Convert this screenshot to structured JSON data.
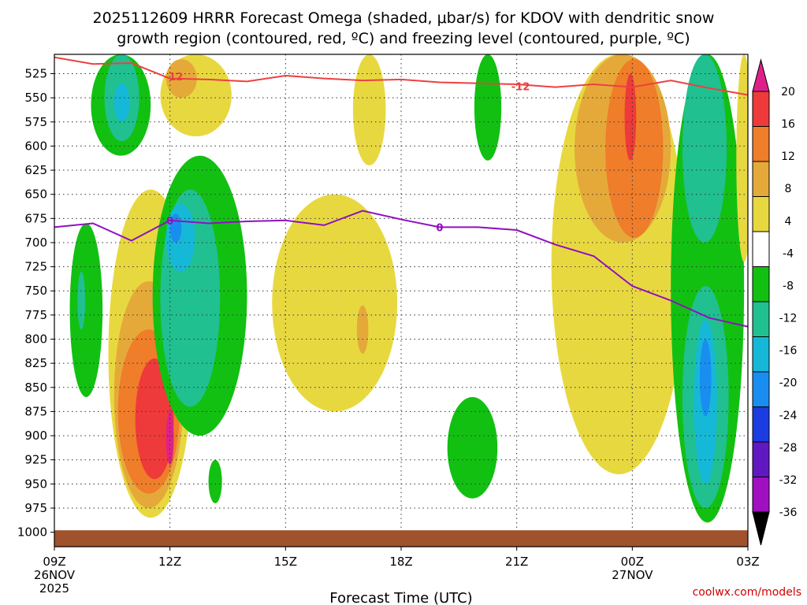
{
  "chart_data": {
    "type": "heatmap",
    "title_line1": "2025112609 HRRR Forecast Omega (shaded, μbar/s) for KDOV with dendritic snow",
    "title_line2": "growth region (contoured, red, ºC) and freezing level (contoured, purple, ºC)",
    "xlabel": "Forecast Time (UTC)",
    "x_range_hours": [
      0,
      18
    ],
    "x_ticks": [
      {
        "hour": 0,
        "label": "09Z",
        "sub1": "26NOV",
        "sub2": "2025"
      },
      {
        "hour": 3,
        "label": "12Z",
        "sub1": "",
        "sub2": ""
      },
      {
        "hour": 6,
        "label": "15Z",
        "sub1": "",
        "sub2": ""
      },
      {
        "hour": 9,
        "label": "18Z",
        "sub1": "",
        "sub2": ""
      },
      {
        "hour": 12,
        "label": "21Z",
        "sub1": "",
        "sub2": ""
      },
      {
        "hour": 15,
        "label": "00Z",
        "sub1": "27NOV",
        "sub2": ""
      },
      {
        "hour": 18,
        "label": "03Z",
        "sub1": "",
        "sub2": ""
      }
    ],
    "y_range_hPa": [
      1015,
      505
    ],
    "y_ticks": [
      "525",
      "550",
      "575",
      "600",
      "625",
      "650",
      "675",
      "700",
      "725",
      "750",
      "775",
      "800",
      "825",
      "850",
      "875",
      "900",
      "925",
      "950",
      "975",
      "1000"
    ],
    "colorbar": {
      "labels": [
        "20",
        "16",
        "12",
        "8",
        "4",
        "-4",
        "-8",
        "-12",
        "-16",
        "-20",
        "-24",
        "-28",
        "-32",
        "-36"
      ],
      "colors": [
        "#e0208a",
        "#ee3a3a",
        "#ef7d2a",
        "#e5a93a",
        "#e8d840",
        "#ffffff",
        "#12c012",
        "#20c090",
        "#16b8d8",
        "#1a8ef0",
        "#1a3ce0",
        "#6018c0",
        "#a010c0",
        "#9a9a9a"
      ]
    },
    "shading": [
      {
        "name": "green-top-left",
        "color": "#12c012",
        "x": [
          0.95,
          2.5
        ],
        "p": [
          505,
          610
        ]
      },
      {
        "name": "teal-top-left",
        "color": "#20c090",
        "x": [
          1.3,
          2.2
        ],
        "p": [
          505,
          595
        ]
      },
      {
        "name": "cyan-top-left",
        "color": "#16b8d8",
        "x": [
          1.55,
          1.95
        ],
        "p": [
          535,
          575
        ]
      },
      {
        "name": "green-left-low",
        "color": "#12c012",
        "x": [
          0.4,
          1.25
        ],
        "p": [
          680,
          860
        ]
      },
      {
        "name": "teal-left-low",
        "color": "#20c090",
        "x": [
          0.6,
          0.8
        ],
        "p": [
          730,
          790
        ]
      },
      {
        "name": "yellow-upper-12z",
        "color": "#e8d840",
        "x": [
          2.75,
          4.6
        ],
        "p": [
          505,
          590
        ]
      },
      {
        "name": "tan-upper-12z",
        "color": "#e5a93a",
        "x": [
          2.9,
          3.7
        ],
        "p": [
          510,
          550
        ]
      },
      {
        "name": "yellow-left-main",
        "color": "#e8d840",
        "x": [
          1.4,
          3.6
        ],
        "p": [
          645,
          985
        ]
      },
      {
        "name": "tan-left-main",
        "color": "#e5a93a",
        "x": [
          1.55,
          3.35
        ],
        "p": [
          740,
          975
        ]
      },
      {
        "name": "orange-left-main",
        "color": "#ef7d2a",
        "x": [
          1.65,
          3.25
        ],
        "p": [
          790,
          960
        ]
      },
      {
        "name": "red-left-main",
        "color": "#ee3a3a",
        "x": [
          2.1,
          3.1
        ],
        "p": [
          820,
          945
        ]
      },
      {
        "name": "magenta-left-main",
        "color": "#e0208a",
        "x": [
          2.9,
          3.1
        ],
        "p": [
          875,
          930
        ]
      },
      {
        "name": "green-12z",
        "color": "#12c012",
        "x": [
          2.55,
          5.0
        ],
        "p": [
          610,
          900
        ]
      },
      {
        "name": "teal-12z",
        "color": "#20c090",
        "x": [
          2.75,
          4.3
        ],
        "p": [
          645,
          870
        ]
      },
      {
        "name": "cyan-12z",
        "color": "#16b8d8",
        "x": [
          2.9,
          3.65
        ],
        "p": [
          660,
          730
        ]
      },
      {
        "name": "blue-12z",
        "color": "#1a8ef0",
        "x": [
          3.0,
          3.3
        ],
        "p": [
          670,
          700
        ]
      },
      {
        "name": "green-small-13z",
        "color": "#12c012",
        "x": [
          4.0,
          4.35
        ],
        "p": [
          925,
          970
        ]
      },
      {
        "name": "yellow-mid",
        "color": "#e8d840",
        "x": [
          5.65,
          8.9
        ],
        "p": [
          650,
          875
        ]
      },
      {
        "name": "tan-mid",
        "color": "#e5a93a",
        "x": [
          7.85,
          8.15
        ],
        "p": [
          765,
          815
        ]
      },
      {
        "name": "yellow-top-mid",
        "color": "#e8d840",
        "x": [
          7.75,
          8.6
        ],
        "p": [
          505,
          620
        ]
      },
      {
        "name": "green-top-20z",
        "color": "#12c012",
        "x": [
          10.9,
          11.6
        ],
        "p": [
          505,
          615
        ]
      },
      {
        "name": "green-low-19z",
        "color": "#12c012",
        "x": [
          10.2,
          11.5
        ],
        "p": [
          860,
          965
        ]
      },
      {
        "name": "yellow-right",
        "color": "#e8d840",
        "x": [
          12.9,
          16.4
        ],
        "p": [
          505,
          940
        ]
      },
      {
        "name": "tan-right",
        "color": "#e5a93a",
        "x": [
          13.5,
          16.0
        ],
        "p": [
          505,
          700
        ]
      },
      {
        "name": "orange-right",
        "color": "#ef7d2a",
        "x": [
          14.3,
          15.8
        ],
        "p": [
          510,
          695
        ]
      },
      {
        "name": "red-right",
        "color": "#ee3a3a",
        "x": [
          14.8,
          15.1
        ],
        "p": [
          525,
          615
        ]
      },
      {
        "name": "green-far-right",
        "color": "#12c012",
        "x": [
          16.0,
          17.9
        ],
        "p": [
          505,
          990
        ]
      },
      {
        "name": "teal-far-right",
        "color": "#20c090",
        "x": [
          16.3,
          17.45
        ],
        "p": [
          505,
          700
        ]
      },
      {
        "name": "teal-far-right-low",
        "color": "#20c090",
        "x": [
          16.3,
          17.5
        ],
        "p": [
          745,
          975
        ]
      },
      {
        "name": "cyan-far-right",
        "color": "#16b8d8",
        "x": [
          16.6,
          17.2
        ],
        "p": [
          780,
          950
        ]
      },
      {
        "name": "blue-far-right",
        "color": "#1a8ef0",
        "x": [
          16.75,
          17.05
        ],
        "p": [
          800,
          880
        ]
      },
      {
        "name": "yellow-far-edge",
        "color": "#e8d840",
        "x": [
          17.7,
          18.1
        ],
        "p": [
          505,
          720
        ]
      }
    ],
    "contours": [
      {
        "name": "dendritic-minus12",
        "color": "#ee4040",
        "label": "-12",
        "label_at": [
          {
            "hour": 3.1,
            "p": 528
          },
          {
            "hour": 12.1,
            "p": 538
          }
        ],
        "points": [
          [
            0,
            508
          ],
          [
            1,
            515
          ],
          [
            2,
            514
          ],
          [
            3,
            530
          ],
          [
            4,
            531
          ],
          [
            5,
            533
          ],
          [
            6,
            527
          ],
          [
            7,
            530
          ],
          [
            8,
            532
          ],
          [
            9,
            531
          ],
          [
            10,
            534
          ],
          [
            11,
            535
          ],
          [
            12,
            536
          ],
          [
            13,
            539
          ],
          [
            14,
            536
          ],
          [
            15,
            539
          ],
          [
            16,
            532
          ],
          [
            17,
            540
          ],
          [
            18,
            547
          ]
        ]
      },
      {
        "name": "freezing-level-0",
        "color": "#9010c0",
        "label": "0",
        "label_at": [
          {
            "hour": 3.0,
            "p": 677
          },
          {
            "hour": 10.0,
            "p": 684
          }
        ],
        "points": [
          [
            0,
            684
          ],
          [
            1,
            680
          ],
          [
            2,
            698
          ],
          [
            3,
            677
          ],
          [
            4,
            680
          ],
          [
            5,
            678
          ],
          [
            6,
            677
          ],
          [
            7,
            682
          ],
          [
            8,
            667
          ],
          [
            9,
            676
          ],
          [
            10,
            684
          ],
          [
            11,
            684
          ],
          [
            12,
            687
          ],
          [
            13,
            702
          ],
          [
            14,
            714
          ],
          [
            15,
            745
          ],
          [
            16,
            760
          ],
          [
            17,
            778
          ],
          [
            18,
            787
          ]
        ]
      }
    ],
    "ground_p": 998,
    "credit": "coolwx.com/models"
  }
}
